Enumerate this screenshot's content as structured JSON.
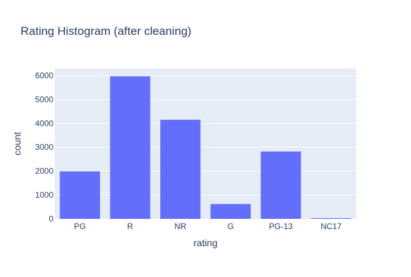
{
  "chart_data": {
    "type": "bar",
    "title": "Rating Histogram (after cleaning)",
    "xlabel": "rating",
    "ylabel": "count",
    "categories": [
      "PG",
      "R",
      "NR",
      "G",
      "PG-13",
      "NC17"
    ],
    "values": [
      1990,
      5970,
      4150,
      620,
      2820,
      30
    ],
    "ylim": [
      0,
      6300
    ],
    "yticks": [
      0,
      1000,
      2000,
      3000,
      4000,
      5000,
      6000
    ],
    "ytick_labels": [
      "0",
      "1000",
      "2000",
      "3000",
      "4000",
      "5000",
      "6000"
    ],
    "grid": true,
    "legend": "none"
  },
  "colors": {
    "bar": "#636efa",
    "plot_background": "#e5ecf6",
    "grid": "#ffffff",
    "text": "#2a3f5f",
    "page_background": "#ffffff"
  }
}
